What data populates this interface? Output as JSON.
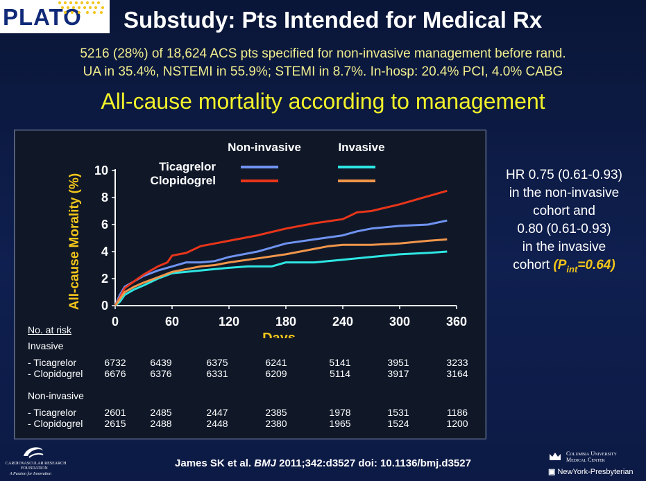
{
  "logo": {
    "text": "PLATO"
  },
  "title": "Substudy: Pts Intended for Medical Rx",
  "subtitle_line1": "5216 (28%) of 18,624 ACS pts specified for non-invasive management before rand.",
  "subtitle_line2": "UA in 35.4%, NSTEMI in 55.9%; STEMI in 8.7%. In-hosp: 20.4% PCI, 4.0% CABG",
  "heading": "All-cause mortality according to management",
  "chart_data": {
    "type": "line",
    "xlabel": "Days",
    "ylabel": "All-cause Morality (%)",
    "xlim": [
      0,
      360
    ],
    "ylim": [
      0,
      10
    ],
    "xticks": [
      0,
      60,
      120,
      180,
      240,
      300,
      360
    ],
    "yticks": [
      0,
      2,
      4,
      6,
      8,
      10
    ],
    "legend": {
      "col_headers": [
        "Non-invasive",
        "Invasive"
      ],
      "row_labels": [
        "Ticagrelor",
        "Clopidogrel"
      ],
      "placement": "top"
    },
    "series": [
      {
        "name": "Non-invasive Ticagrelor",
        "color": "#6f93f0",
        "x": [
          0,
          5,
          10,
          20,
          30,
          45,
          60,
          75,
          90,
          105,
          120,
          150,
          165,
          180,
          210,
          240,
          255,
          270,
          300,
          330,
          350
        ],
        "y": [
          0,
          0.8,
          1.4,
          1.8,
          2.2,
          2.6,
          2.9,
          3.2,
          3.2,
          3.3,
          3.6,
          4.0,
          4.3,
          4.6,
          4.9,
          5.2,
          5.5,
          5.7,
          5.9,
          6.0,
          6.3
        ]
      },
      {
        "name": "Non-invasive Clopidogrel",
        "color": "#e8351a",
        "x": [
          0,
          5,
          10,
          20,
          30,
          45,
          55,
          60,
          75,
          90,
          105,
          120,
          150,
          180,
          210,
          240,
          255,
          270,
          300,
          330,
          350
        ],
        "y": [
          0,
          0.6,
          1.3,
          1.8,
          2.3,
          2.9,
          3.2,
          3.7,
          3.9,
          4.4,
          4.6,
          4.8,
          5.2,
          5.7,
          6.1,
          6.4,
          6.9,
          7.0,
          7.5,
          8.1,
          8.5
        ]
      },
      {
        "name": "Invasive Ticagrelor",
        "color": "#2ee6e3",
        "x": [
          0,
          5,
          10,
          20,
          30,
          45,
          60,
          75,
          90,
          105,
          120,
          140,
          165,
          180,
          210,
          240,
          270,
          300,
          330,
          350
        ],
        "y": [
          0,
          0.3,
          0.8,
          1.2,
          1.5,
          2.0,
          2.4,
          2.5,
          2.6,
          2.7,
          2.8,
          2.9,
          2.9,
          3.2,
          3.2,
          3.4,
          3.6,
          3.8,
          3.9,
          4.0
        ]
      },
      {
        "name": "Invasive Clopidogrel",
        "color": "#f0954a",
        "x": [
          0,
          5,
          10,
          20,
          30,
          45,
          60,
          75,
          90,
          105,
          120,
          150,
          180,
          210,
          225,
          240,
          270,
          300,
          330,
          350
        ],
        "y": [
          0,
          0.5,
          1.0,
          1.4,
          1.7,
          2.1,
          2.5,
          2.7,
          2.9,
          3.0,
          3.2,
          3.5,
          3.8,
          4.2,
          4.4,
          4.5,
          4.5,
          4.6,
          4.8,
          4.9
        ]
      }
    ]
  },
  "at_risk": {
    "title": "No. at risk",
    "groups": [
      {
        "label": "Invasive",
        "rows": [
          {
            "label": "- Ticagrelor",
            "values": [
              "6732",
              "6439",
              "6375",
              "6241",
              "5141",
              "3951",
              "3233"
            ]
          },
          {
            "label": "- Clopidogrel",
            "values": [
              "6676",
              "6376",
              "6331",
              "6209",
              "5114",
              "3917",
              "3164"
            ]
          }
        ]
      },
      {
        "label": "Non-invasive",
        "rows": [
          {
            "label": "- Ticagrelor",
            "values": [
              "2601",
              "2485",
              "2447",
              "2385",
              "1978",
              "1531",
              "1186"
            ]
          },
          {
            "label": "- Clopidogrel",
            "values": [
              "2615",
              "2488",
              "2448",
              "2380",
              "1965",
              "1524",
              "1200"
            ]
          }
        ]
      }
    ]
  },
  "hr_note": {
    "lines": [
      "HR 0.75 (0.61-0.93)",
      "in the non-invasive",
      "cohort and",
      "0.80 (0.61-0.93)",
      "in the invasive"
    ],
    "last_prefix": "cohort",
    "pint": "(Pint=0.64)"
  },
  "citation": {
    "authors": "James SK et al.",
    "journal": "BMJ",
    "rest": "2011;342:d3527 doi: 10.1136/bmj.d3527"
  },
  "crf_logo": {
    "line1": "CARDIOVASCULAR RESEARCH",
    "line2": "FOUNDATION",
    "line3": "A Passion for Innovation"
  },
  "columbia_logo": {
    "line1": "Columbia University",
    "line2": "Medical Center",
    "line3": "NewYork-Presbyterian"
  }
}
